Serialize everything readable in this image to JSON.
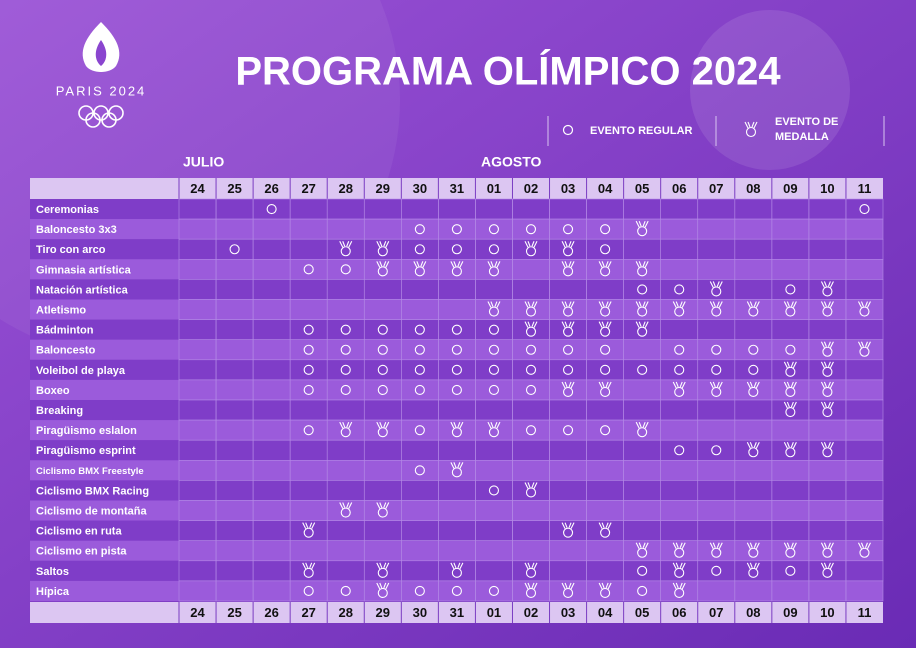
{
  "logo": {
    "text": "PARIS 2024"
  },
  "header": {
    "title": "PROGRAMA OLÍMPICO 2024"
  },
  "legend": {
    "regular": "EVENTO REGULAR",
    "medal": "EVENTO DE MEDALLA"
  },
  "months": [
    "JULIO",
    "AGOSTO"
  ],
  "days": [
    "24",
    "25",
    "26",
    "27",
    "28",
    "29",
    "30",
    "31",
    "01",
    "02",
    "03",
    "04",
    "05",
    "06",
    "07",
    "08",
    "09",
    "10",
    "11"
  ],
  "rows": [
    {
      "label": "Ceremonias",
      "cells": [
        null,
        null,
        "o",
        null,
        null,
        null,
        null,
        null,
        null,
        null,
        null,
        null,
        null,
        null,
        null,
        null,
        null,
        null,
        "o"
      ]
    },
    {
      "label": "Baloncesto 3x3",
      "cells": [
        null,
        null,
        null,
        null,
        null,
        null,
        "o",
        "o",
        "o",
        "o",
        "o",
        "o",
        "m",
        null,
        null,
        null,
        null,
        null,
        null
      ]
    },
    {
      "label": "Tiro con arco",
      "cells": [
        null,
        "o",
        null,
        null,
        "m",
        "m",
        "o",
        "o",
        "o",
        "m",
        "m",
        "o",
        null,
        null,
        null,
        null,
        null,
        null,
        null
      ]
    },
    {
      "label": "Gimnasia artística",
      "cells": [
        null,
        null,
        null,
        "o",
        "o",
        "m",
        "m",
        "m",
        "m",
        null,
        "m",
        "m",
        "m",
        null,
        null,
        null,
        null,
        null,
        null
      ]
    },
    {
      "label": "Natación artística",
      "cells": [
        null,
        null,
        null,
        null,
        null,
        null,
        null,
        null,
        null,
        null,
        null,
        null,
        "o",
        "o",
        "m",
        null,
        "o",
        "m",
        null
      ]
    },
    {
      "label": "Atletismo",
      "cells": [
        null,
        null,
        null,
        null,
        null,
        null,
        null,
        null,
        "m",
        "m",
        "m",
        "m",
        "m",
        "m",
        "m",
        "m",
        "m",
        "m",
        "m"
      ]
    },
    {
      "label": "Bádminton",
      "cells": [
        null,
        null,
        null,
        "o",
        "o",
        "o",
        "o",
        "o",
        "o",
        "m",
        "m",
        "m",
        "m",
        null,
        null,
        null,
        null,
        null,
        null
      ]
    },
    {
      "label": "Baloncesto",
      "cells": [
        null,
        null,
        null,
        "o",
        "o",
        "o",
        "o",
        "o",
        "o",
        "o",
        "o",
        "o",
        null,
        "o",
        "o",
        "o",
        "o",
        "m",
        "m"
      ]
    },
    {
      "label": "Voleibol de playa",
      "cells": [
        null,
        null,
        null,
        "o",
        "o",
        "o",
        "o",
        "o",
        "o",
        "o",
        "o",
        "o",
        "o",
        "o",
        "o",
        "o",
        "m",
        "m",
        null
      ]
    },
    {
      "label": "Boxeo",
      "cells": [
        null,
        null,
        null,
        "o",
        "o",
        "o",
        "o",
        "o",
        "o",
        "o",
        "m",
        "m",
        null,
        "m",
        "m",
        "m",
        "m",
        "m",
        null
      ]
    },
    {
      "label": "Breaking",
      "cells": [
        null,
        null,
        null,
        null,
        null,
        null,
        null,
        null,
        null,
        null,
        null,
        null,
        null,
        null,
        null,
        null,
        "m",
        "m",
        null
      ]
    },
    {
      "label": "Piragüismo eslalon",
      "cells": [
        null,
        null,
        null,
        "o",
        "m",
        "m",
        "o",
        "m",
        "m",
        "o",
        "o",
        "o",
        "m",
        null,
        null,
        null,
        null,
        null,
        null
      ]
    },
    {
      "label": "Piragüismo esprint",
      "cells": [
        null,
        null,
        null,
        null,
        null,
        null,
        null,
        null,
        null,
        null,
        null,
        null,
        null,
        "o",
        "o",
        "m",
        "m",
        "m",
        null
      ]
    },
    {
      "label": "Ciclismo BMX Freestyle",
      "cells": [
        null,
        null,
        null,
        null,
        null,
        null,
        "o",
        "m",
        null,
        null,
        null,
        null,
        null,
        null,
        null,
        null,
        null,
        null,
        null
      ]
    },
    {
      "label": "Ciclismo BMX Racing",
      "cells": [
        null,
        null,
        null,
        null,
        null,
        null,
        null,
        null,
        "o",
        "m",
        null,
        null,
        null,
        null,
        null,
        null,
        null,
        null,
        null
      ]
    },
    {
      "label": "Ciclismo de montaña",
      "cells": [
        null,
        null,
        null,
        null,
        "m",
        "m",
        null,
        null,
        null,
        null,
        null,
        null,
        null,
        null,
        null,
        null,
        null,
        null,
        null
      ]
    },
    {
      "label": "Ciclismo en ruta",
      "cells": [
        null,
        null,
        null,
        "m",
        null,
        null,
        null,
        null,
        null,
        null,
        "m",
        "m",
        null,
        null,
        null,
        null,
        null,
        null,
        null
      ]
    },
    {
      "label": "Ciclismo en pista",
      "cells": [
        null,
        null,
        null,
        null,
        null,
        null,
        null,
        null,
        null,
        null,
        null,
        null,
        "m",
        "m",
        "m",
        "m",
        "m",
        "m",
        "m"
      ]
    },
    {
      "label": "Saltos",
      "cells": [
        null,
        null,
        null,
        "m",
        null,
        "m",
        null,
        "m",
        null,
        "m",
        null,
        null,
        "o",
        "m",
        "o",
        "m",
        "o",
        "m",
        null
      ]
    },
    {
      "label": "Hípica",
      "cells": [
        null,
        null,
        null,
        "o",
        "o",
        "m",
        "o",
        "o",
        "o",
        "m",
        "m",
        "m",
        "o",
        "m",
        null,
        null,
        null,
        null,
        null
      ]
    }
  ]
}
